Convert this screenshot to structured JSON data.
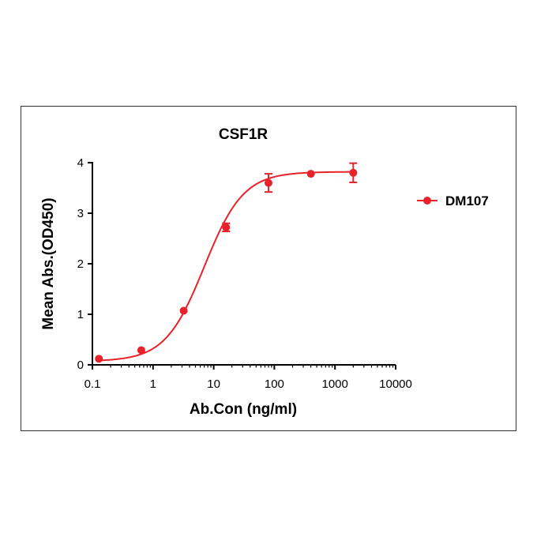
{
  "chart_data": {
    "type": "scatter",
    "title": "CSF1R",
    "xlabel": "Ab.Con (ng/ml)",
    "ylabel": "Mean Abs.(OD450)",
    "xscale": "log",
    "xlim": [
      0.1,
      10000
    ],
    "ylim": [
      0,
      4
    ],
    "xticks": [
      "0.1",
      "1",
      "10",
      "100",
      "1000",
      "10000"
    ],
    "yticks": [
      "0",
      "1",
      "2",
      "3",
      "4"
    ],
    "grid": false,
    "legend_position": "right",
    "series": [
      {
        "name": "DM107",
        "color": "#e8222a",
        "marker": "circle",
        "fit": "sigmoid",
        "x": [
          0.128,
          0.64,
          3.2,
          16,
          80,
          400,
          2000
        ],
        "y": [
          0.12,
          0.29,
          1.07,
          2.72,
          3.6,
          3.78,
          3.8
        ],
        "error": [
          0.03,
          0.03,
          0.03,
          0.08,
          0.18,
          0.03,
          0.19
        ]
      }
    ]
  }
}
